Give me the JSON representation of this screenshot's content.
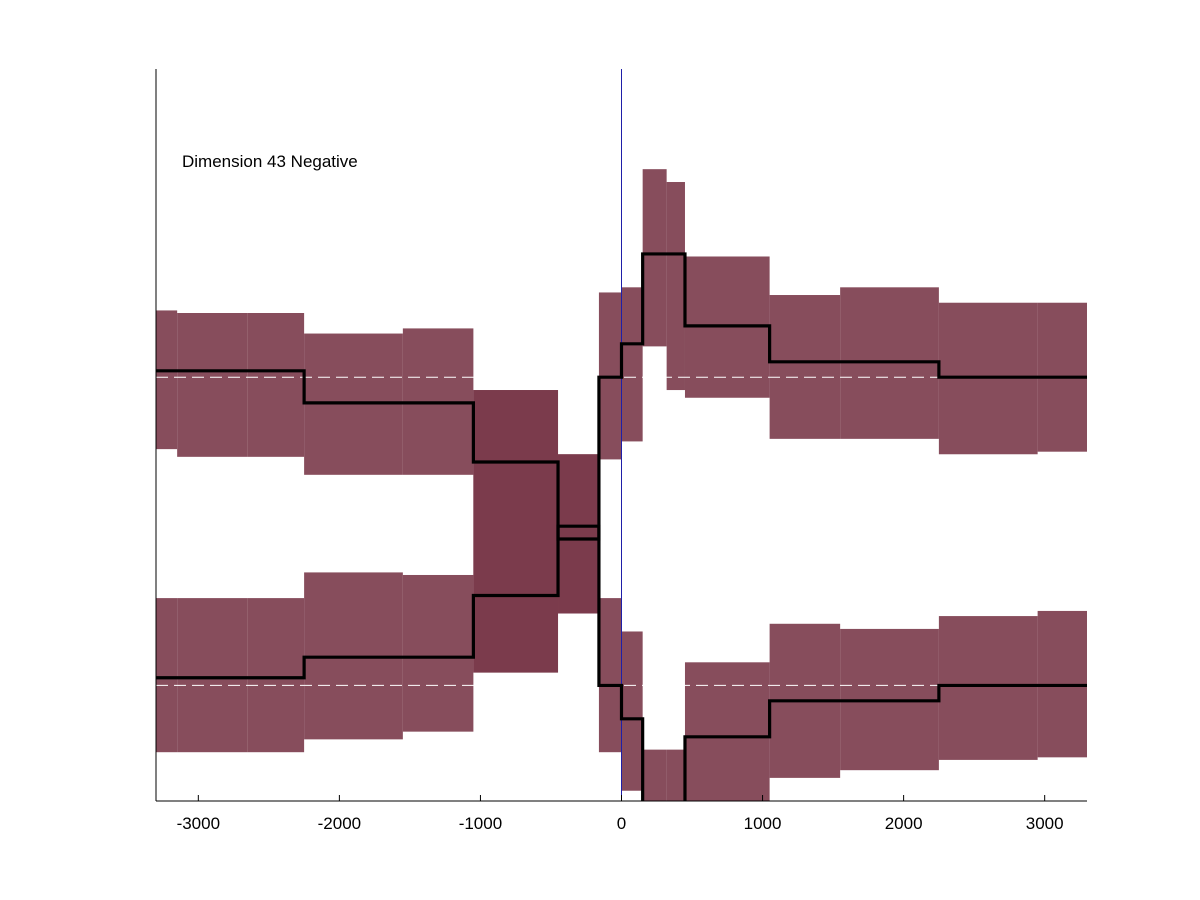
{
  "chart_data": {
    "type": "area",
    "title": "",
    "xlabel": "",
    "ylabel": "",
    "annotation": "Dimension 43 Negative",
    "xlim": [
      -3300,
      3300
    ],
    "ylim": [
      -1.65,
      1.2
    ],
    "x_ticks": [
      -3000,
      -2000,
      -1000,
      0,
      1000,
      2000,
      3000
    ],
    "x_tick_labels": [
      "-3000",
      "-2000",
      "-1000",
      "0",
      "1000",
      "2000",
      "3000"
    ],
    "y_ticks_shown": false,
    "grid": false,
    "legend": "none",
    "reference_lines": [
      {
        "kind": "vertical",
        "x": 0,
        "color": "#1f1fa8"
      },
      {
        "kind": "horizontal-dashed",
        "y": 0,
        "color": "#ffffff"
      },
      {
        "kind": "horizontal-dashed",
        "y": -1.2,
        "color": "#ffffff"
      }
    ],
    "band_color": "#7a3a4a",
    "line_color": "#000000",
    "series": [
      {
        "bins": [
          {
            "x0": -3300,
            "x1": -3150,
            "y": 0.025,
            "lo": -0.28,
            "hi": 0.26
          },
          {
            "x0": -3150,
            "x1": -2650,
            "y": 0.025,
            "lo": -0.31,
            "hi": 0.25
          },
          {
            "x0": -2650,
            "x1": -2250,
            "y": 0.025,
            "lo": -0.31,
            "hi": 0.25
          },
          {
            "x0": -2250,
            "x1": -1550,
            "y": -0.1,
            "lo": -0.38,
            "hi": 0.17
          },
          {
            "x0": -1550,
            "x1": -1050,
            "y": -0.1,
            "lo": -0.38,
            "hi": 0.19
          },
          {
            "x0": -1050,
            "x1": -450,
            "y": -0.33,
            "lo": -1.15,
            "hi": -0.05
          },
          {
            "x0": -450,
            "x1": -160,
            "y": -0.63,
            "lo": -0.92,
            "hi": -0.3
          },
          {
            "x0": -160,
            "x1": 0,
            "y": 0,
            "lo": -0.32,
            "hi": 0.33
          },
          {
            "x0": 0,
            "x1": 150,
            "y": 0.13,
            "lo": -0.25,
            "hi": 0.35
          },
          {
            "x0": 150,
            "x1": 320,
            "y": 0.48,
            "lo": 0.12,
            "hi": 0.81
          },
          {
            "x0": 320,
            "x1": 450,
            "y": 0.48,
            "lo": -0.05,
            "hi": 0.76
          },
          {
            "x0": 450,
            "x1": 1050,
            "y": 0.2,
            "lo": -0.08,
            "hi": 0.47
          },
          {
            "x0": 1050,
            "x1": 1550,
            "y": 0.06,
            "lo": -0.24,
            "hi": 0.32
          },
          {
            "x0": 1550,
            "x1": 2250,
            "y": 0.06,
            "lo": -0.24,
            "hi": 0.35
          },
          {
            "x0": 2250,
            "x1": 2950,
            "y": 0,
            "lo": -0.3,
            "hi": 0.29
          },
          {
            "x0": 2950,
            "x1": 3300,
            "y": 0,
            "lo": -0.29,
            "hi": 0.29
          }
        ]
      },
      {
        "bins": [
          {
            "x0": -3300,
            "x1": -3150,
            "y": -1.17,
            "lo": -1.46,
            "hi": -0.86
          },
          {
            "x0": -3150,
            "x1": -2650,
            "y": -1.17,
            "lo": -1.46,
            "hi": -0.86
          },
          {
            "x0": -2650,
            "x1": -2250,
            "y": -1.17,
            "lo": -1.46,
            "hi": -0.86
          },
          {
            "x0": -2250,
            "x1": -1550,
            "y": -1.09,
            "lo": -1.41,
            "hi": -0.76
          },
          {
            "x0": -1550,
            "x1": -1050,
            "y": -1.09,
            "lo": -1.38,
            "hi": -0.77
          },
          {
            "x0": -1050,
            "x1": -450,
            "y": -0.85,
            "lo": -1.15,
            "hi": -0.05
          },
          {
            "x0": -450,
            "x1": -160,
            "y": -0.58,
            "lo": -0.92,
            "hi": -0.3
          },
          {
            "x0": -160,
            "x1": 0,
            "y": -1.2,
            "lo": -1.46,
            "hi": -0.86
          },
          {
            "x0": 0,
            "x1": 150,
            "y": -1.33,
            "lo": -1.61,
            "hi": -0.99
          },
          {
            "x0": 150,
            "x1": 320,
            "y": -1.68,
            "lo": -2.0,
            "hi": -1.45
          },
          {
            "x0": 320,
            "x1": 450,
            "y": -1.68,
            "lo": -2.0,
            "hi": -1.45
          },
          {
            "x0": 450,
            "x1": 1050,
            "y": -1.4,
            "lo": -1.71,
            "hi": -1.11
          },
          {
            "x0": 1050,
            "x1": 1550,
            "y": -1.26,
            "lo": -1.56,
            "hi": -0.96
          },
          {
            "x0": 1550,
            "x1": 2250,
            "y": -1.26,
            "lo": -1.53,
            "hi": -0.98
          },
          {
            "x0": 2250,
            "x1": 2950,
            "y": -1.2,
            "lo": -1.49,
            "hi": -0.93
          },
          {
            "x0": 2950,
            "x1": 3300,
            "y": -1.2,
            "lo": -1.48,
            "hi": -0.91
          }
        ]
      }
    ]
  }
}
